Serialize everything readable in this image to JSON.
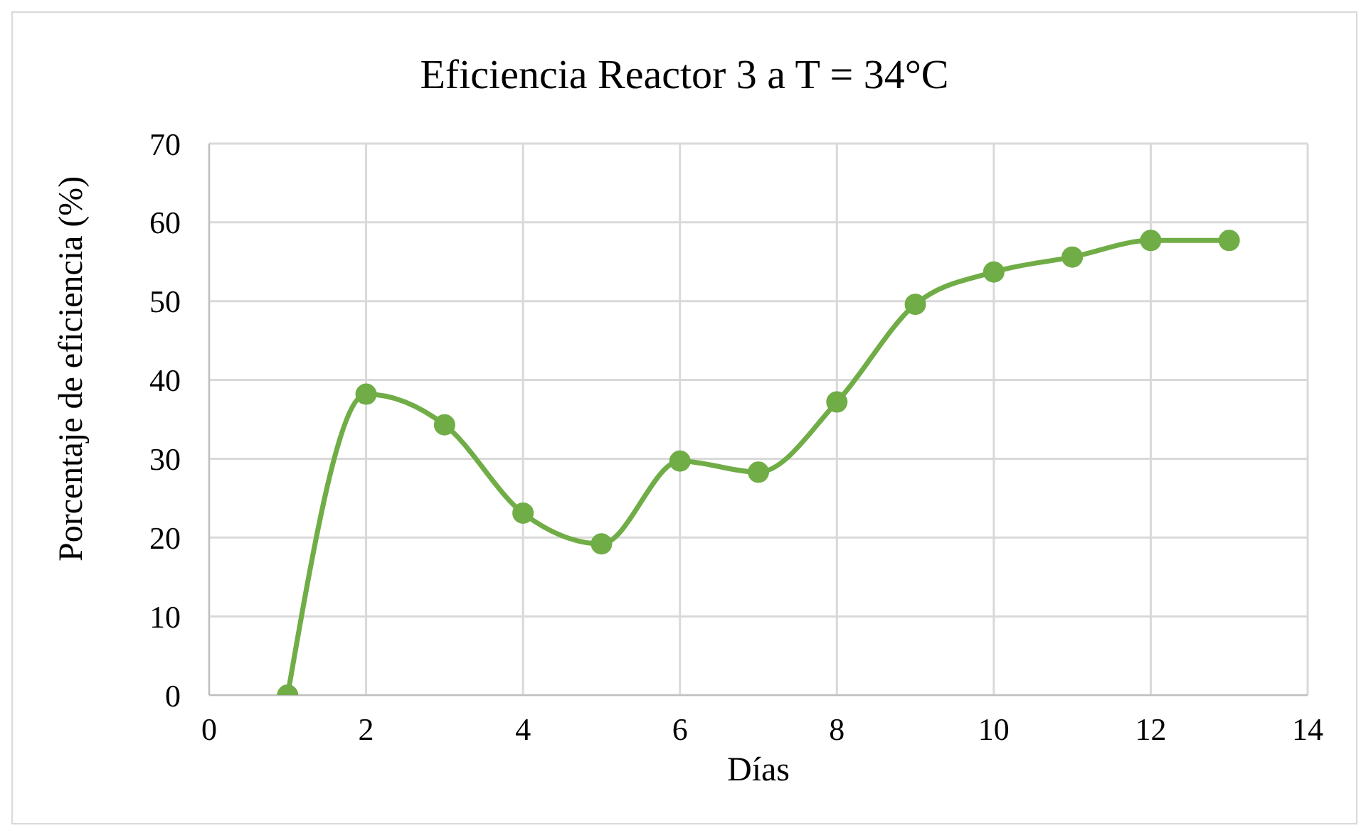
{
  "chart_data": {
    "type": "line",
    "title": "Eficiencia Reactor 3 a T = 34°C",
    "xlabel": "Días",
    "ylabel": "Porcentaje de eficiencia (%)",
    "x": [
      1,
      2,
      3,
      4,
      5,
      6,
      7,
      8,
      9,
      10,
      11,
      12,
      13
    ],
    "series": [
      {
        "color": "#70ad47",
        "values": [
          0,
          38.2,
          34.3,
          23.1,
          19.2,
          29.7,
          28.3,
          37.2,
          49.6,
          53.7,
          55.6,
          57.7,
          57.7
        ]
      }
    ],
    "xlim": [
      0,
      14
    ],
    "xticks": [
      0,
      2,
      4,
      6,
      8,
      10,
      12,
      14
    ],
    "ylim": [
      0,
      70
    ],
    "yticks": [
      0,
      10,
      20,
      30,
      40,
      50,
      60,
      70
    ],
    "grid": true,
    "legend": false,
    "marker": "circle",
    "line_style": "solid"
  }
}
